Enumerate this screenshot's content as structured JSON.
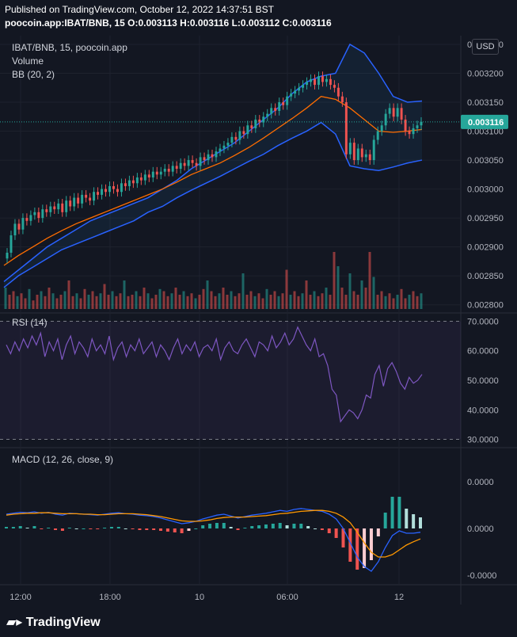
{
  "header": {
    "published": "Published on TradingView.com, October 12, 2022 14:37:51 BST",
    "symbol": "poocoin.app:IBAT/BNB, 15",
    "ohlc": "O:0.003113 H:0.003116 L:0.003112 C:0.003116"
  },
  "legends": {
    "main": "IBAT/BNB, 15, poocoin.app",
    "volume": "Volume",
    "bb": "BB (20, 2)",
    "rsi": "RSI (14)",
    "macd": "MACD (12, 26, close, 9)"
  },
  "currency": "USD",
  "last_price_label": "0.003116",
  "footer": {
    "logo": "TradingView"
  },
  "colors": {
    "up": "#26a69a",
    "down": "#ef5350",
    "bb_band": "#2962ff",
    "bb_basis": "#ff6d00",
    "rsi": "#7e57c2",
    "macd": "#2962ff",
    "signal": "#ff9800",
    "bg": "#131722"
  },
  "chart_data": [
    {
      "type": "candlestick",
      "title": "IBAT/BNB, 15, poocoin.app",
      "y_ticks": [
        "0.002800",
        "0.002850",
        "0.002900",
        "0.002950",
        "0.003000",
        "0.003050",
        "0.003100",
        "0.003150",
        "0.003200",
        "0.003250"
      ],
      "ylim": [
        0.00279,
        0.003265
      ],
      "x_ticks": [
        "12:00",
        "18:00",
        "10",
        "06:00",
        "12"
      ],
      "close_series": [
        0.00289,
        0.00292,
        0.00294,
        0.00293,
        0.00295,
        0.002945,
        0.002955,
        0.00296,
        0.00295,
        0.002965,
        0.00296,
        0.00297,
        0.002965,
        0.002975,
        0.00296,
        0.00298,
        0.00297,
        0.002985,
        0.002975,
        0.00299,
        0.002985,
        0.00298,
        0.002995,
        0.00299,
        0.003,
        0.002995,
        0.003005,
        0.003,
        0.002995,
        0.00301,
        0.003005,
        0.003015,
        0.00301,
        0.00302,
        0.003015,
        0.003025,
        0.00302,
        0.00303,
        0.003025,
        0.00303,
        0.003035,
        0.00303,
        0.00304,
        0.003035,
        0.003045,
        0.00304,
        0.00305,
        0.003045,
        0.00304,
        0.003055,
        0.00305,
        0.00306,
        0.003055,
        0.003065,
        0.00307,
        0.003075,
        0.00308,
        0.00309,
        0.003085,
        0.0031,
        0.003095,
        0.00311,
        0.003105,
        0.00312,
        0.003115,
        0.003125,
        0.00313,
        0.00314,
        0.003135,
        0.00315,
        0.003145,
        0.00316,
        0.003165,
        0.00317,
        0.003175,
        0.00318,
        0.003185,
        0.00319,
        0.00318,
        0.003195,
        0.003185,
        0.00319,
        0.00318,
        0.003175,
        0.00316,
        0.00315,
        0.00306,
        0.00308,
        0.00305,
        0.00307,
        0.003055,
        0.00306,
        0.00305,
        0.003085,
        0.0031,
        0.00311,
        0.00313,
        0.00314,
        0.003125,
        0.00314,
        0.00312,
        0.0031,
        0.003095,
        0.003105,
        0.00311,
        0.003116
      ],
      "bb_upper": [
        0.00284,
        0.00286,
        0.00288,
        0.0029,
        0.002915,
        0.00293,
        0.002945,
        0.002955,
        0.002965,
        0.002975,
        0.002985,
        0.003,
        0.003015,
        0.003035,
        0.00305,
        0.003065,
        0.00308,
        0.0031,
        0.00312,
        0.00314,
        0.003165,
        0.003185,
        0.003195,
        0.0032,
        0.00325,
        0.003235,
        0.0032,
        0.00316,
        0.00315,
        0.003152
      ],
      "bb_lower": [
        0.00283,
        0.00285,
        0.002865,
        0.00288,
        0.002895,
        0.002905,
        0.002915,
        0.002925,
        0.002935,
        0.002945,
        0.00296,
        0.00297,
        0.002985,
        0.002998,
        0.00301,
        0.003022,
        0.003035,
        0.003048,
        0.00306,
        0.003075,
        0.003088,
        0.0031,
        0.003115,
        0.003095,
        0.00304,
        0.003035,
        0.003032,
        0.003038,
        0.003045,
        0.00305
      ],
      "bb_basis": [
        0.002868,
        0.002885,
        0.0029,
        0.002915,
        0.002928,
        0.00294,
        0.00295,
        0.00296,
        0.00297,
        0.00298,
        0.00299,
        0.003,
        0.003012,
        0.003025,
        0.003035,
        0.003045,
        0.003058,
        0.003072,
        0.003088,
        0.003105,
        0.003122,
        0.00314,
        0.00316,
        0.003155,
        0.00314,
        0.00312,
        0.0031,
        0.003098,
        0.0031,
        0.003103
      ],
      "last_price": 0.003116
    },
    {
      "type": "bar",
      "title": "Volume",
      "values": [
        30,
        20,
        25,
        18,
        22,
        15,
        28,
        12,
        20,
        25,
        18,
        30,
        22,
        15,
        20,
        25,
        40,
        18,
        22,
        15,
        28,
        20,
        25,
        18,
        22,
        35,
        20,
        25,
        18,
        22,
        40,
        18,
        20,
        25,
        18,
        30,
        22,
        15,
        20,
        28,
        25,
        18,
        22,
        30,
        20,
        25,
        18,
        22,
        15,
        20,
        28,
        40,
        25,
        18,
        22,
        30,
        20,
        25,
        18,
        22,
        50,
        20,
        25,
        18,
        22,
        15,
        28,
        20,
        25,
        18,
        22,
        55,
        20,
        25,
        18,
        22,
        40,
        20,
        25,
        18,
        22,
        30,
        20,
        80,
        60,
        30,
        20,
        50,
        25,
        20,
        40,
        30,
        80,
        45,
        20,
        25,
        18,
        22,
        15,
        20,
        28,
        15,
        20,
        25,
        18,
        22
      ],
      "ylim": [
        0,
        100
      ]
    },
    {
      "type": "line",
      "title": "RSI (14)",
      "y_ticks": [
        "30.0000",
        "40.0000",
        "50.0000",
        "60.0000",
        "70.0000"
      ],
      "ylim": [
        28,
        72
      ],
      "bands": [
        30,
        70
      ],
      "values": [
        62,
        59,
        63,
        60,
        64,
        61,
        65,
        62,
        66,
        58,
        63,
        60,
        64,
        57,
        62,
        65,
        59,
        63,
        61,
        58,
        64,
        60,
        62,
        59,
        65,
        57,
        61,
        63,
        58,
        62,
        60,
        64,
        59,
        61,
        63,
        58,
        62,
        60,
        57,
        61,
        64,
        59,
        62,
        60,
        63,
        58,
        61,
        62,
        60,
        64,
        57,
        61,
        63,
        60,
        59,
        62,
        64,
        61,
        58,
        63,
        62,
        60,
        65,
        61,
        63,
        66,
        62,
        64,
        68,
        65,
        62,
        60,
        64,
        58,
        59,
        55,
        47,
        45,
        36,
        38,
        40,
        39,
        37,
        40,
        45,
        44,
        52,
        55,
        48,
        54,
        56,
        53,
        49,
        47,
        51,
        49,
        50,
        52
      ]
    },
    {
      "type": "line",
      "title": "MACD (12, 26, close, 9)",
      "y_ticks": [
        "-0.0000",
        "0.0000",
        "0.0000"
      ],
      "ylim": [
        -0.0001,
        7e-05
      ],
      "macd": [
        30,
        32,
        34,
        33,
        35,
        32,
        34,
        30,
        28,
        32,
        31,
        30,
        29,
        28,
        30,
        32,
        33,
        31,
        30,
        28,
        27,
        25,
        22,
        18,
        14,
        10,
        12,
        15,
        20,
        24,
        28,
        30,
        26,
        22,
        25,
        28,
        30,
        32,
        35,
        38,
        36,
        40,
        42,
        40,
        38,
        36,
        30,
        20,
        0,
        -30,
        -60,
        -80,
        -90,
        -70,
        -40,
        -15,
        -5,
        -10,
        -10,
        -8
      ],
      "signal": [
        28,
        30,
        31,
        32,
        32,
        33,
        33,
        32,
        31,
        31,
        31,
        30,
        30,
        29,
        29,
        30,
        31,
        31,
        31,
        30,
        29,
        27,
        25,
        22,
        19,
        16,
        15,
        15,
        16,
        18,
        21,
        23,
        24,
        24,
        24,
        25,
        26,
        27,
        29,
        31,
        32,
        34,
        36,
        37,
        38,
        38,
        36,
        32,
        24,
        12,
        -8,
        -30,
        -50,
        -60,
        -60,
        -55,
        -45,
        -35,
        -28,
        -22
      ],
      "histogram": [
        2,
        2,
        3,
        1,
        3,
        -1,
        1,
        -2,
        -3,
        1,
        0,
        0,
        -1,
        -1,
        1,
        2,
        2,
        0,
        -1,
        -2,
        -2,
        -2,
        -3,
        -4,
        -5,
        -6,
        -3,
        0,
        4,
        6,
        7,
        7,
        2,
        -2,
        1,
        3,
        4,
        5,
        6,
        7,
        4,
        6,
        6,
        3,
        0,
        -2,
        -6,
        -12,
        -24,
        -42,
        -52,
        -50,
        -40,
        -10,
        20,
        40,
        40,
        25,
        18,
        14
      ]
    }
  ]
}
